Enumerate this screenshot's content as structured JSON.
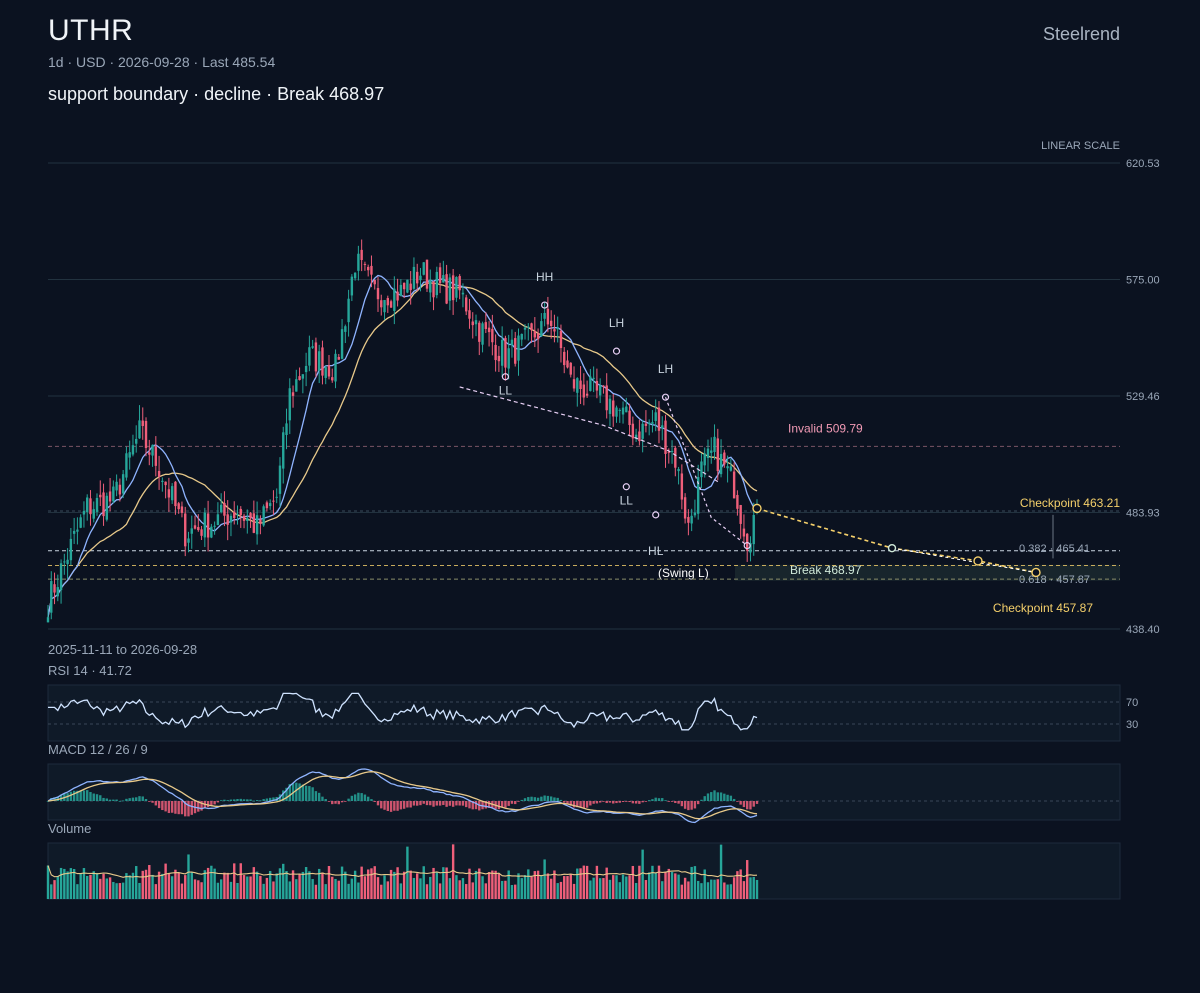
{
  "header": {
    "ticker": "UTHR",
    "meta": "1d · USD · 2026-09-28 · Last 485.54",
    "subtitle": "support boundary · decline · Break 468.97",
    "brand": "Steelrend"
  },
  "chart_data": {
    "type": "candlestick",
    "scale_label": "LINEAR SCALE",
    "y_ticks": [
      "620.53",
      "575.00",
      "529.46",
      "483.93",
      "438.40"
    ],
    "ylim": [
      438.4,
      620.53
    ],
    "date_range": "2025-11-11 to 2026-09-28",
    "last": 485.54,
    "anchors": [
      {
        "i": 0,
        "p": 449
      },
      {
        "i": 12,
        "p": 486
      },
      {
        "i": 20,
        "p": 489
      },
      {
        "i": 28,
        "p": 515
      },
      {
        "i": 34,
        "p": 502
      },
      {
        "i": 42,
        "p": 476
      },
      {
        "i": 50,
        "p": 480
      },
      {
        "i": 58,
        "p": 485
      },
      {
        "i": 64,
        "p": 478
      },
      {
        "i": 70,
        "p": 490
      },
      {
        "i": 74,
        "p": 530
      },
      {
        "i": 80,
        "p": 545
      },
      {
        "i": 88,
        "p": 540
      },
      {
        "i": 94,
        "p": 582
      },
      {
        "i": 100,
        "p": 570
      },
      {
        "i": 108,
        "p": 570
      },
      {
        "i": 114,
        "p": 578
      },
      {
        "i": 120,
        "p": 572
      },
      {
        "i": 126,
        "p": 570
      },
      {
        "i": 132,
        "p": 556
      },
      {
        "i": 140,
        "p": 545
      },
      {
        "i": 148,
        "p": 552
      },
      {
        "i": 154,
        "p": 560
      },
      {
        "i": 160,
        "p": 535
      },
      {
        "i": 168,
        "p": 530
      },
      {
        "i": 174,
        "p": 525
      },
      {
        "i": 180,
        "p": 515
      },
      {
        "i": 186,
        "p": 520
      },
      {
        "i": 192,
        "p": 505
      },
      {
        "i": 196,
        "p": 478
      },
      {
        "i": 200,
        "p": 500
      },
      {
        "i": 204,
        "p": 508
      },
      {
        "i": 210,
        "p": 495
      },
      {
        "i": 214,
        "p": 474
      },
      {
        "i": 217,
        "p": 485.54
      }
    ],
    "swing_points": [
      {
        "label": "HH",
        "i": 152,
        "p": 565
      },
      {
        "label": "LL",
        "i": 140,
        "p": 537
      },
      {
        "label": "LH",
        "i": 174,
        "p": 547
      },
      {
        "label": "LL",
        "i": 177,
        "p": 494
      },
      {
        "label": "LH",
        "i": 189,
        "p": 529
      },
      {
        "label": "HL",
        "i": 186,
        "p": 483
      }
    ],
    "levels": {
      "invalid": {
        "label": "Invalid 509.79",
        "value": 509.79
      },
      "break": {
        "label": "Break 468.97",
        "value": 468.97
      },
      "swing_label": "(Swing L)",
      "checkpoint_high": {
        "label": "Checkpoint 463.21",
        "value": 463.21
      },
      "checkpoint_low": {
        "label": "Checkpoint 457.87",
        "value": 457.87
      },
      "fib_382": {
        "label": "0.382 · 465.41",
        "value": 465.41
      },
      "fib_618": {
        "label": "0.618 · 457.87",
        "value": 457.87
      }
    },
    "rsi": {
      "title": "RSI 14 · 41.72",
      "value": 41.72,
      "levels": [
        "70",
        "30"
      ]
    },
    "macd": {
      "title": "MACD 12 / 26 / 9"
    },
    "volume": {
      "title": "Volume"
    },
    "colors": {
      "up": "#26a69a",
      "down": "#ef5f7a",
      "ma_fast": "#8fb4ff",
      "ma_slow": "#e8c98a",
      "checkpoint": "#f5d06b",
      "invalid": "#f19ab5",
      "swing": "#e8d0f5",
      "rsi_line": "#cfe3ff"
    }
  }
}
